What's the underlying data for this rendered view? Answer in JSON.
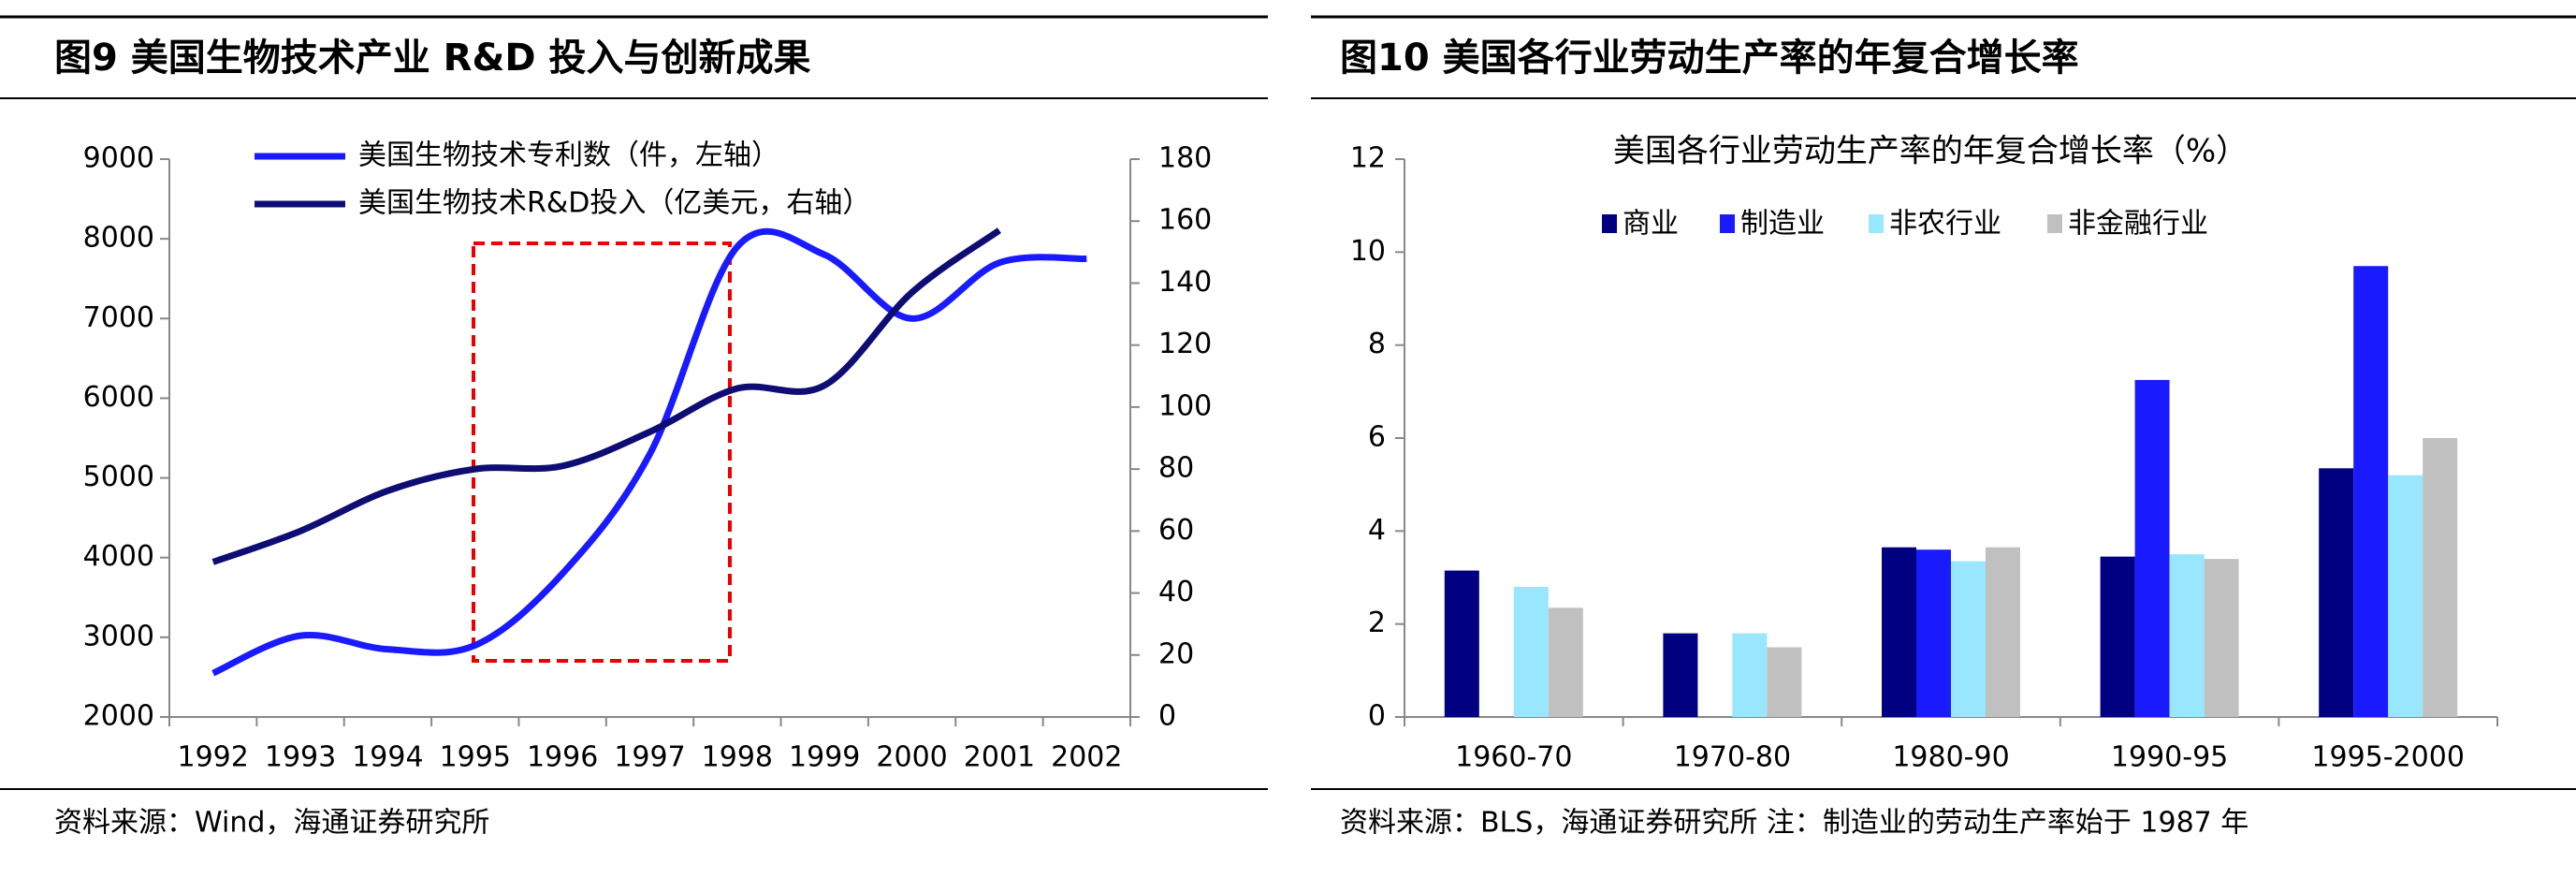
{
  "chart_data": [
    {
      "type": "line",
      "title": "图9   美国生物技术产业 R&D 投入与创新成果",
      "source": "资料来源：Wind，海通证券研究所",
      "categories": [
        "1992",
        "1993",
        "1994",
        "1995",
        "1996",
        "1997",
        "1998",
        "1999",
        "2000",
        "2001",
        "2002"
      ],
      "series": [
        {
          "name": "美国生物技术专利数（件，左轴）",
          "color": "#1a1aff",
          "values": [
            2550,
            3020,
            2850,
            2900,
            3800,
            5300,
            7900,
            7800,
            7000,
            7700,
            7750
          ]
        },
        {
          "name": "美国生物技术R&D投入（亿美元，右轴）",
          "color": "#0d0d73",
          "axis": "y2",
          "values": [
            50,
            60,
            73,
            80,
            81,
            92,
            106,
            107,
            137,
            157,
            null
          ]
        }
      ],
      "ylim": [
        2000,
        9000
      ],
      "yticks": [
        2000,
        3000,
        4000,
        5000,
        6000,
        7000,
        8000,
        9000
      ],
      "y2lim": [
        0,
        180
      ],
      "y2ticks": [
        0,
        20,
        40,
        60,
        80,
        100,
        120,
        140,
        160,
        180
      ]
    },
    {
      "type": "bar",
      "title": "图10 美国各行业劳动生产率的年复合增长率",
      "subtitle": "美国各行业劳动生产率的年复合增长率（%）",
      "source": "资料来源：BLS，海通证券研究所  注：制造业的劳动生产率始于 1987 年",
      "categories": [
        "1960-70",
        "1970-80",
        "1980-90",
        "1990-95",
        "1995-2000"
      ],
      "series": [
        {
          "name": "商业",
          "color": "#000080",
          "values": [
            3.15,
            1.8,
            3.65,
            3.45,
            5.35
          ]
        },
        {
          "name": "制造业",
          "color": "#1a1aff",
          "values": [
            null,
            null,
            3.6,
            7.25,
            9.7
          ]
        },
        {
          "name": "非农行业",
          "color": "#99e6ff",
          "values": [
            2.8,
            1.8,
            3.35,
            3.5,
            5.2
          ]
        },
        {
          "name": "非金融行业",
          "color": "#c0c0c0",
          "values": [
            2.35,
            1.5,
            3.65,
            3.4,
            6.0
          ]
        }
      ],
      "ylim": [
        0,
        12
      ],
      "yticks": [
        0,
        2,
        4,
        6,
        8,
        10,
        12
      ]
    }
  ]
}
